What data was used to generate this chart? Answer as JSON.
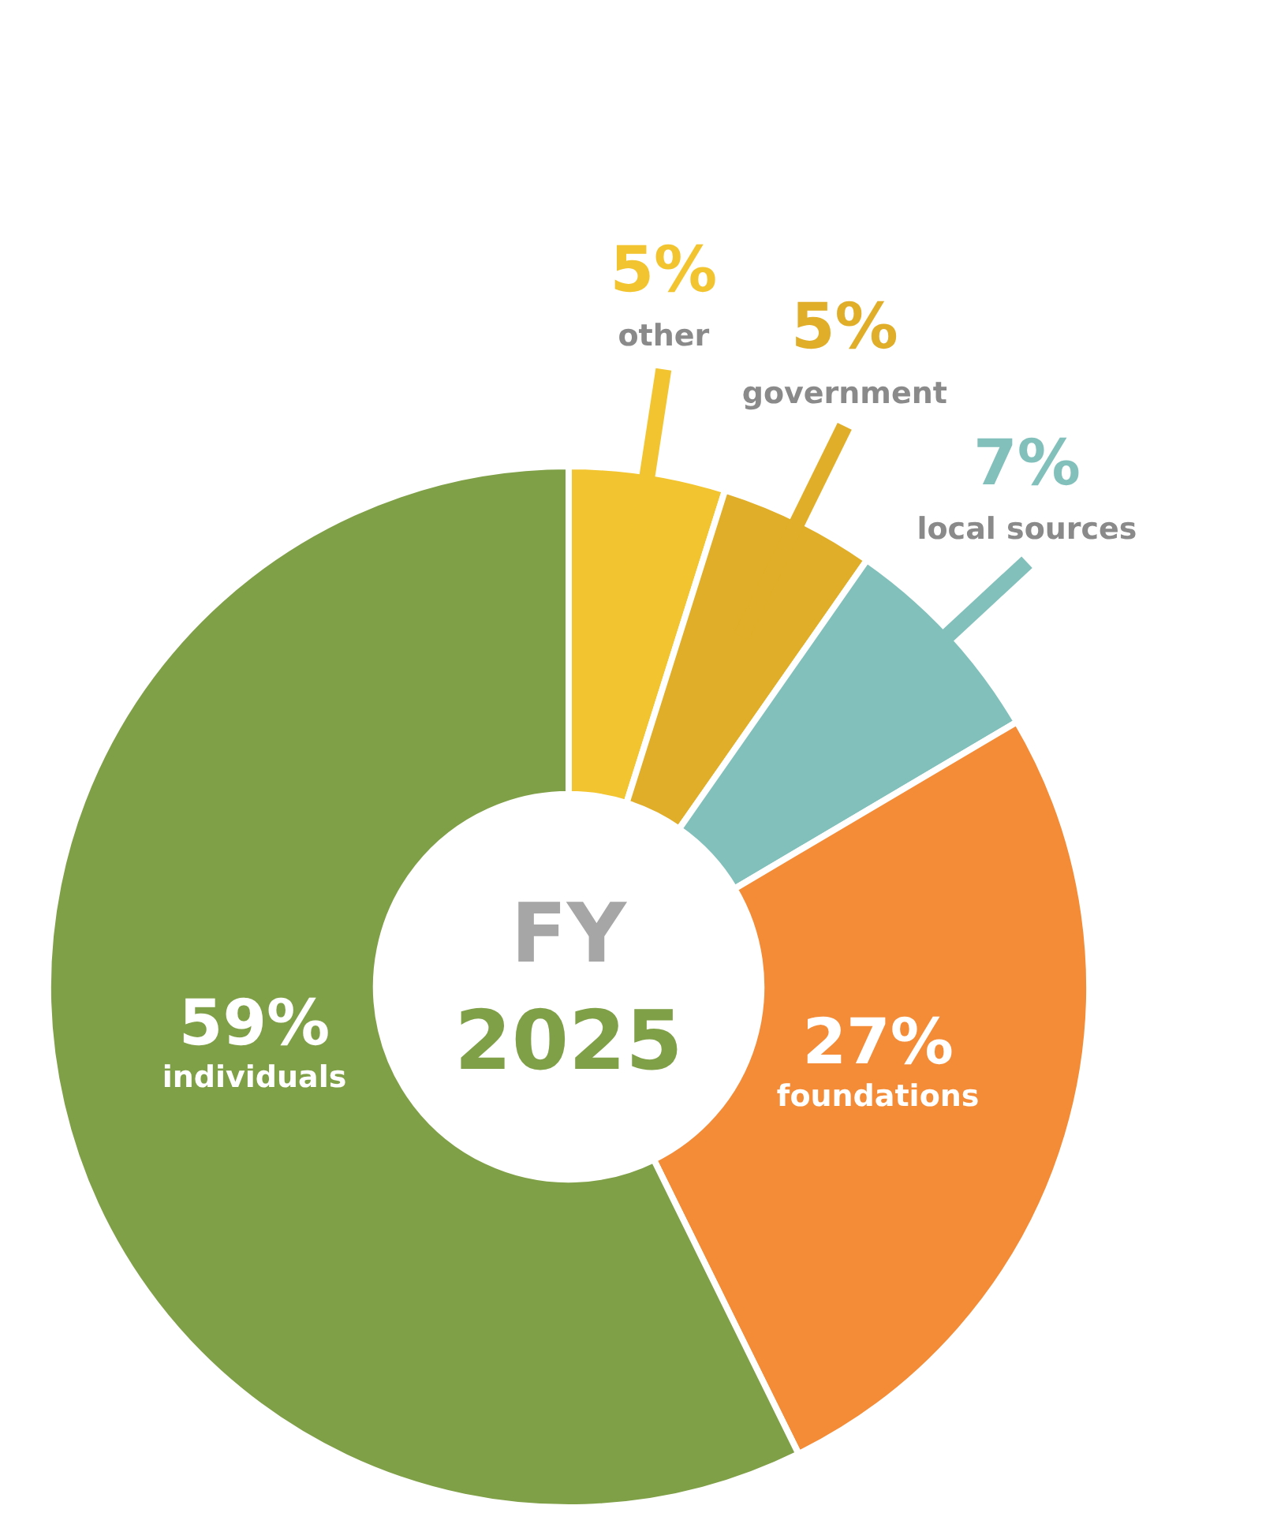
{
  "chart_data": {
    "type": "donut",
    "categories": [
      "other",
      "government",
      "local sources",
      "foundations",
      "individuals"
    ],
    "values": [
      5,
      5,
      7,
      27,
      59
    ],
    "value_labels": [
      "5%",
      "5%",
      "7%",
      "27%",
      "59%"
    ],
    "colors": [
      "#f2c530",
      "#e0ae28",
      "#82c0bb",
      "#f48b37",
      "#80a048"
    ],
    "annotations": [
      "FY",
      "2025"
    ]
  }
}
